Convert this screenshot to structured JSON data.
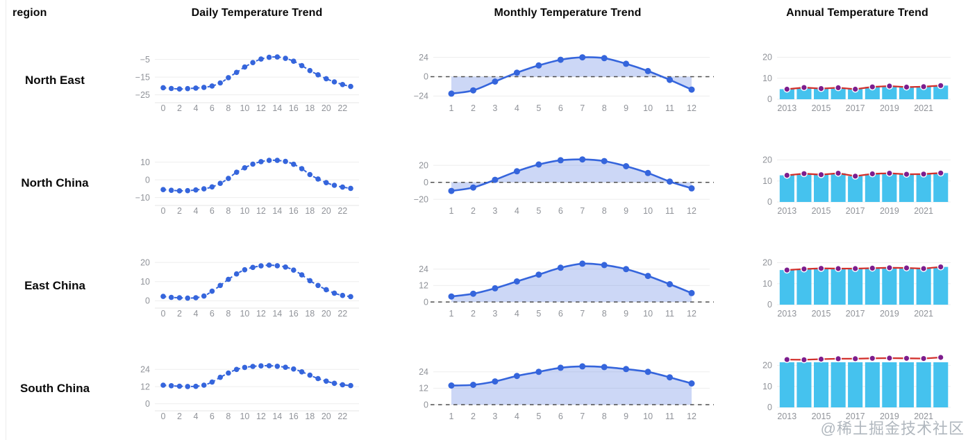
{
  "page": {
    "watermark": "@稀土掘金技术社区"
  },
  "table": {
    "header": {
      "region_label": "region",
      "columns": [
        "Daily Temperature Trend",
        "Monthly Temperature Trend",
        "Annual Temperature Trend"
      ]
    }
  },
  "colors": {
    "accent_blue": "#3565dc",
    "area_fill": "rgba(97,131,227,0.32)",
    "bar_cyan": "#45c2ee",
    "line_red": "#d2302c",
    "dot_purple": "#7d1d8d",
    "grid_line": "#ededed",
    "axis_line": "#e4e4e4",
    "axis_label": "#909399",
    "zero_line": "#4d4d4d"
  },
  "chart_data": [
    {
      "region": "North East",
      "daily": {
        "type": "line",
        "title": "Daily Temperature Trend",
        "x": [
          0,
          1,
          2,
          3,
          4,
          5,
          6,
          7,
          8,
          9,
          10,
          11,
          12,
          13,
          14,
          15,
          16,
          17,
          18,
          19,
          20,
          21,
          22,
          23
        ],
        "values": [
          -21,
          -21.4,
          -21.7,
          -21.5,
          -21.2,
          -20.8,
          -20,
          -18.3,
          -15.3,
          -12.3,
          -9.3,
          -6.8,
          -4.8,
          -3.8,
          -3.6,
          -4.4,
          -6,
          -8.5,
          -11.3,
          -13.7,
          -15.9,
          -17.7,
          -19.2,
          -20.3
        ],
        "yticks": [
          -5,
          -15,
          -25
        ],
        "ylim": [
          -27.5,
          -2
        ],
        "xlabel_every": 2
      },
      "monthly": {
        "type": "area",
        "title": "Monthly Temperature Trend",
        "x": [
          1,
          2,
          3,
          4,
          5,
          6,
          7,
          8,
          9,
          10,
          11,
          12
        ],
        "values": [
          -21,
          -17,
          -6,
          5,
          14,
          21,
          24,
          23,
          16,
          7,
          -4,
          -16
        ],
        "yticks": [
          24,
          0,
          -24
        ],
        "ylim": [
          -28,
          28
        ],
        "zero_line": true,
        "xlabel_every": 1
      },
      "annual": {
        "type": "bar",
        "title": "Annual Temperature Trend",
        "x": [
          2013,
          2014,
          2015,
          2016,
          2017,
          2018,
          2019,
          2020,
          2021,
          2022
        ],
        "values": [
          4.8,
          5.6,
          5.1,
          5.5,
          4.8,
          5.9,
          6.3,
          5.8,
          6,
          6.5
        ],
        "yticks": [
          20,
          10,
          0
        ],
        "ylim": [
          0,
          21.5
        ],
        "line_overlay": true,
        "xlabel_every": 2
      }
    },
    {
      "region": "North China",
      "daily": {
        "type": "line",
        "title": "Daily Temperature Trend",
        "x": [
          0,
          1,
          2,
          3,
          4,
          5,
          6,
          7,
          8,
          9,
          10,
          11,
          12,
          13,
          14,
          15,
          16,
          17,
          18,
          19,
          20,
          21,
          22,
          23
        ],
        "values": [
          -5.5,
          -5.9,
          -6.2,
          -6.1,
          -5.7,
          -5.1,
          -4,
          -2,
          0.8,
          4.3,
          6.8,
          8.9,
          10.3,
          11,
          11,
          10.4,
          8.8,
          6.3,
          3,
          0.5,
          -1.6,
          -3.1,
          -4.1,
          -4.8
        ],
        "yticks": [
          10,
          0,
          -10
        ],
        "ylim": [
          -12.5,
          13
        ],
        "xlabel_every": 2
      },
      "monthly": {
        "type": "area",
        "title": "Monthly Temperature Trend",
        "x": [
          1,
          2,
          3,
          4,
          5,
          6,
          7,
          8,
          9,
          10,
          11,
          12
        ],
        "values": [
          -10,
          -6,
          3,
          13,
          21,
          26,
          27,
          25,
          19,
          11,
          1,
          -7
        ],
        "yticks": [
          20,
          0,
          -20
        ],
        "ylim": [
          -23,
          30
        ],
        "zero_line": true,
        "xlabel_every": 1
      },
      "annual": {
        "type": "bar",
        "title": "Annual Temperature Trend",
        "x": [
          2013,
          2014,
          2015,
          2016,
          2017,
          2018,
          2019,
          2020,
          2021,
          2022
        ],
        "values": [
          12.7,
          13.5,
          13,
          13.7,
          12.3,
          13.4,
          13.7,
          13.2,
          13.3,
          13.8
        ],
        "yticks": [
          20,
          10,
          0
        ],
        "ylim": [
          0,
          21.5
        ],
        "line_overlay": true,
        "xlabel_every": 2
      }
    },
    {
      "region": "East China",
      "daily": {
        "type": "line",
        "title": "Daily Temperature Trend",
        "x": [
          0,
          1,
          2,
          3,
          4,
          5,
          6,
          7,
          8,
          9,
          10,
          11,
          12,
          13,
          14,
          15,
          16,
          17,
          18,
          19,
          20,
          21,
          22,
          23
        ],
        "values": [
          2.3,
          1.8,
          1.6,
          1.4,
          1.6,
          2.5,
          5,
          8,
          11.2,
          14,
          16.2,
          17.4,
          18.2,
          18.6,
          18.3,
          17.6,
          16,
          13.5,
          10.5,
          8,
          5.8,
          4,
          2.8,
          2.2
        ],
        "yticks": [
          20,
          10,
          0
        ],
        "ylim": [
          -2,
          21.5
        ],
        "xlabel_every": 2
      },
      "monthly": {
        "type": "area",
        "title": "Monthly Temperature Trend",
        "x": [
          1,
          2,
          3,
          4,
          5,
          6,
          7,
          8,
          9,
          10,
          11,
          12
        ],
        "values": [
          4,
          6,
          10,
          15,
          20,
          25,
          28,
          27,
          24,
          19,
          13,
          6.5
        ],
        "yticks": [
          24,
          12,
          0
        ],
        "ylim": [
          -2,
          31
        ],
        "zero_line": true,
        "xlabel_every": 1
      },
      "annual": {
        "type": "bar",
        "title": "Annual Temperature Trend",
        "x": [
          2013,
          2014,
          2015,
          2016,
          2017,
          2018,
          2019,
          2020,
          2021,
          2022
        ],
        "values": [
          16.5,
          17,
          17.3,
          17.2,
          17.2,
          17.4,
          17.6,
          17.5,
          17.2,
          18
        ],
        "yticks": [
          20,
          10,
          0
        ],
        "ylim": [
          0,
          21.5
        ],
        "line_overlay": true,
        "xlabel_every": 2
      }
    },
    {
      "region": "South China",
      "daily": {
        "type": "line",
        "title": "Daily Temperature Trend",
        "x": [
          0,
          1,
          2,
          3,
          4,
          5,
          6,
          7,
          8,
          9,
          10,
          11,
          12,
          13,
          14,
          15,
          16,
          17,
          18,
          19,
          20,
          21,
          22,
          23
        ],
        "values": [
          13,
          12.6,
          12.3,
          12.1,
          12.2,
          13,
          15.2,
          18.5,
          21.5,
          24,
          25.4,
          26.1,
          26.5,
          26.6,
          26.2,
          25.5,
          24.3,
          22.3,
          20,
          17.6,
          15.8,
          14.3,
          13.3,
          12.7
        ],
        "yticks": [
          24,
          12,
          0
        ],
        "ylim": [
          -2.5,
          29
        ],
        "xlabel_every": 2
      },
      "monthly": {
        "type": "area",
        "title": "Monthly Temperature Trend",
        "x": [
          1,
          2,
          3,
          4,
          5,
          6,
          7,
          8,
          9,
          10,
          11,
          12
        ],
        "values": [
          14,
          14.5,
          17,
          21,
          24,
          27,
          28,
          27.5,
          26,
          24,
          20,
          15.5
        ],
        "yticks": [
          24,
          12,
          0
        ],
        "ylim": [
          -2,
          31
        ],
        "zero_line": true,
        "xlabel_every": 1
      },
      "annual": {
        "type": "bar",
        "title": "Annual Temperature Trend",
        "x": [
          2013,
          2014,
          2015,
          2016,
          2017,
          2018,
          2019,
          2020,
          2021,
          2022
        ],
        "values": [
          22.8,
          22.7,
          23,
          23.2,
          23.2,
          23.4,
          23.5,
          23.4,
          23.3,
          23.8
        ],
        "yticks": [
          20,
          10,
          0
        ],
        "ylim": [
          0,
          21.5
        ],
        "line_overlay": true,
        "xlabel_every": 2
      }
    }
  ]
}
